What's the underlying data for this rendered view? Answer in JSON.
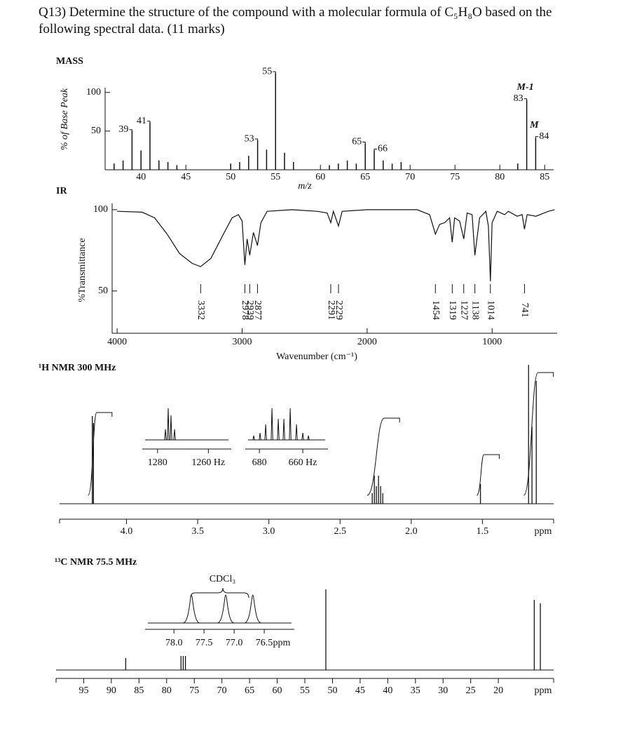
{
  "question": "Q13) Determine the structure of the compound with a molecular formula of C₅H₈O based on the following spectral data. (11 marks)",
  "chart_data": [
    {
      "type": "bar",
      "title": "MASS",
      "y_label": "% of Base Peak",
      "x_label": "m/z",
      "x": [
        37,
        38,
        39,
        40,
        41,
        42,
        43,
        44,
        50,
        51,
        52,
        53,
        54,
        55,
        56,
        57,
        61,
        62,
        63,
        64,
        65,
        66,
        67,
        68,
        69,
        82,
        83,
        84
      ],
      "values": [
        8,
        12,
        50,
        25,
        61,
        12,
        10,
        6,
        8,
        10,
        18,
        38,
        26,
        125,
        22,
        10,
        6,
        8,
        12,
        8,
        34,
        25,
        12,
        8,
        10,
        8,
        90,
        41
      ],
      "color": "#000000",
      "xlim": [
        36,
        86
      ],
      "xticks": [
        40,
        45,
        50,
        55,
        60,
        65,
        70,
        75,
        80,
        85
      ],
      "ylim": [
        0,
        127
      ],
      "yticks": [
        50,
        100
      ],
      "peak_labels": [
        39,
        41,
        53,
        55,
        65,
        66,
        83,
        84
      ],
      "annotations": [
        {
          "text": "M-1",
          "x": 83
        },
        {
          "text": "M",
          "x": 84
        }
      ]
    },
    {
      "type": "line",
      "title": "IR",
      "y_label": "%Transmittance",
      "x_label": "Wavenumber (cm⁻¹)",
      "x": [
        4000,
        3800,
        3700,
        3600,
        3500,
        3400,
        3332,
        3250,
        3150,
        3080,
        3030,
        3000,
        2978,
        2960,
        2939,
        2910,
        2877,
        2850,
        2800,
        2600,
        2400,
        2320,
        2291,
        2270,
        2229,
        2200,
        2000,
        1800,
        1600,
        1500,
        1454,
        1420,
        1380,
        1340,
        1319,
        1300,
        1260,
        1227,
        1200,
        1160,
        1138,
        1100,
        1050,
        1030,
        1014,
        1000,
        960,
        900,
        870,
        800,
        760,
        741,
        720,
        650,
        550,
        500
      ],
      "values": [
        99,
        98.5,
        95,
        85,
        73,
        67,
        65,
        70,
        85,
        95,
        97,
        93,
        66,
        82,
        72,
        86,
        78,
        92,
        99,
        100,
        99,
        98,
        92,
        99,
        90,
        99,
        100,
        100,
        100,
        97,
        85,
        91,
        92,
        95,
        80,
        95,
        93,
        82,
        98,
        97,
        72,
        95,
        99,
        90,
        56,
        92,
        99,
        97,
        99,
        96,
        97,
        88,
        97,
        96,
        99,
        100
      ],
      "color": "#000000",
      "xlim": [
        4040,
        480
      ],
      "xticks": [
        4000,
        3000,
        2000,
        1000
      ],
      "ylim": [
        24,
        106
      ],
      "yticks": [
        50,
        100
      ],
      "peak_labels": [
        3332,
        2978,
        2939,
        2877,
        2291,
        2229,
        1454,
        1319,
        1227,
        1138,
        1014,
        741
      ]
    },
    {
      "type": "nmr",
      "title": "¹H NMR 300 MHz",
      "x_label": "ppm",
      "xlim": [
        4.47,
        1.0
      ],
      "xticks": [
        {
          "value": 4,
          "label": "4.0"
        },
        3.5,
        {
          "value": 3,
          "label": "3.0"
        },
        2.5,
        {
          "value": 2,
          "label": "2.0"
        },
        1.5
      ],
      "peaks": {
        "x": [
          4.24,
          4.232,
          2.274,
          2.259,
          2.245,
          2.23,
          2.215,
          2.2,
          1.514,
          1.176,
          1.152,
          1.122
        ],
        "values": [
          125,
          115,
          15,
          40,
          25,
          40,
          25,
          15,
          28,
          198,
          110,
          175
        ]
      },
      "integrals": [
        {
          "from": 4.26,
          "to": 4.21,
          "rise": 118
        },
        {
          "from": 2.3,
          "to": 2.19,
          "rise": 110
        },
        {
          "from": 1.53,
          "to": 1.49,
          "rise": 58
        },
        {
          "from": 1.2,
          "to": 1.11,
          "rise": 175
        }
      ],
      "insets": [
        {
          "xlim": [
            1286,
            1251
          ],
          "xticks": [
            1280,
            {
              "value": 1260,
              "label": "1260 Hz"
            }
          ],
          "peaks": {
            "x": [
              1276.9,
              1275.8,
              1274.7,
              1273.3
            ],
            "values": [
              15,
              45,
              35,
              15
            ]
          }
        },
        {
          "xlim": [
            686.5,
            648.4
          ],
          "xticks": [
            680,
            {
              "value": 660,
              "label": "660 Hz"
            }
          ],
          "peaks": {
            "x": [
              682.6,
              679.7,
              677.1,
              674.2,
              671.3,
              668.7,
              665.8,
              662.9,
              660.0,
              657.4
            ],
            "values": [
              6,
              10,
              22,
              45,
              30,
              30,
              45,
              22,
              10,
              6
            ]
          }
        }
      ]
    },
    {
      "type": "nmr",
      "title": "¹³C NMR 75.5 MHz",
      "x_label": "ppm",
      "xlim": [
        100,
        10
      ],
      "xticks": [
        95,
        90,
        85,
        80,
        75,
        70,
        65,
        60,
        55,
        50,
        45,
        40,
        35,
        30,
        25,
        20
      ],
      "peaks": {
        "x": [
          87.4,
          77.4,
          77.0,
          76.6,
          51.2,
          13.5,
          12.4
        ],
        "values": [
          17,
          20,
          20,
          20,
          115,
          100,
          95
        ]
      },
      "insets": [
        {
          "label": "CDCl₃",
          "x_label": "ppm",
          "xlim": [
            78.48,
            76.0
          ],
          "xticks": [
            {
              "value": 78,
              "label": "78.0"
            },
            77.5,
            {
              "value": 77,
              "label": "77.0"
            },
            76.5
          ],
          "peaks": {
            "x": [
              77.71,
              77.14,
              76.69
            ],
            "values": [
              40,
              40,
              40
            ]
          }
        }
      ]
    }
  ]
}
